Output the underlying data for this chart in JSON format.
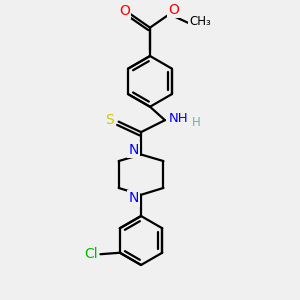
{
  "background_color": "#f0f0f0",
  "bond_color": "#000000",
  "atom_colors": {
    "O": "#ff0000",
    "N": "#0000ff",
    "S": "#cccc00",
    "Cl": "#00bb00",
    "C": "#000000",
    "H": "#70b0b0"
  },
  "line_width": 1.6,
  "figsize": [
    3.0,
    3.0
  ],
  "dpi": 100
}
